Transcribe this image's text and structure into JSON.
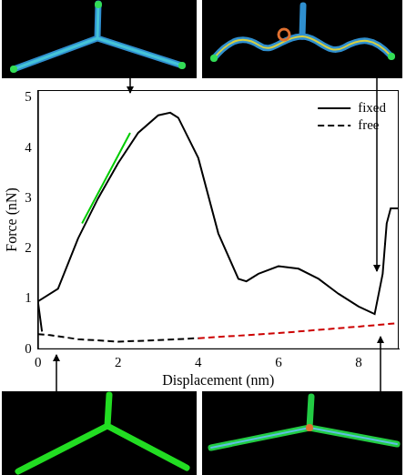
{
  "chart_data": {
    "type": "line",
    "x_label": "Displacement (nm)",
    "y_label": "Force (nN)",
    "xlim": [
      0,
      9
    ],
    "xticks": [
      0,
      2,
      4,
      6,
      8
    ],
    "ylim": [
      0,
      5.15
    ],
    "yticks": [
      0,
      1,
      2,
      3,
      4,
      5
    ],
    "grid": false,
    "legend": "upper right",
    "series": [
      {
        "name": "fixed",
        "color": "#000000",
        "line_style": "solid",
        "x": [
          0.1,
          0.0,
          0.5,
          1.0,
          1.5,
          2.0,
          2.5,
          3.0,
          3.3,
          3.5,
          4.0,
          4.5,
          5.0,
          5.2,
          5.5,
          6.0,
          6.5,
          7.0,
          7.5,
          8.0,
          8.4,
          8.6,
          8.7,
          8.8,
          9.0
        ],
        "values": [
          0.35,
          0.95,
          1.2,
          2.2,
          3.0,
          3.7,
          4.3,
          4.65,
          4.7,
          4.6,
          3.8,
          2.3,
          1.4,
          1.35,
          1.5,
          1.65,
          1.6,
          1.4,
          1.1,
          0.85,
          0.7,
          1.5,
          2.5,
          2.8,
          2.8
        ]
      },
      {
        "color": "#00cc00",
        "line_style": "solid",
        "x": [
          1.1,
          1.7,
          2.3
        ],
        "values": [
          2.5,
          3.4,
          4.3
        ]
      },
      {
        "name": "free",
        "color": "#000000",
        "line_style": "dashed",
        "x": [
          0.0,
          0.3,
          1.0,
          2.0,
          3.0,
          4.0,
          6.0,
          8.0,
          9.0
        ],
        "values": [
          0.3,
          0.28,
          0.2,
          0.15,
          0.18,
          0.22,
          0.32,
          0.45,
          0.52
        ],
        "colors": [
          "#000000",
          "#000000",
          "#000000",
          "#000000",
          "#000000",
          "#cc0000",
          "#cc0000",
          "#cc0000",
          "#cc0000"
        ]
      }
    ]
  }
}
